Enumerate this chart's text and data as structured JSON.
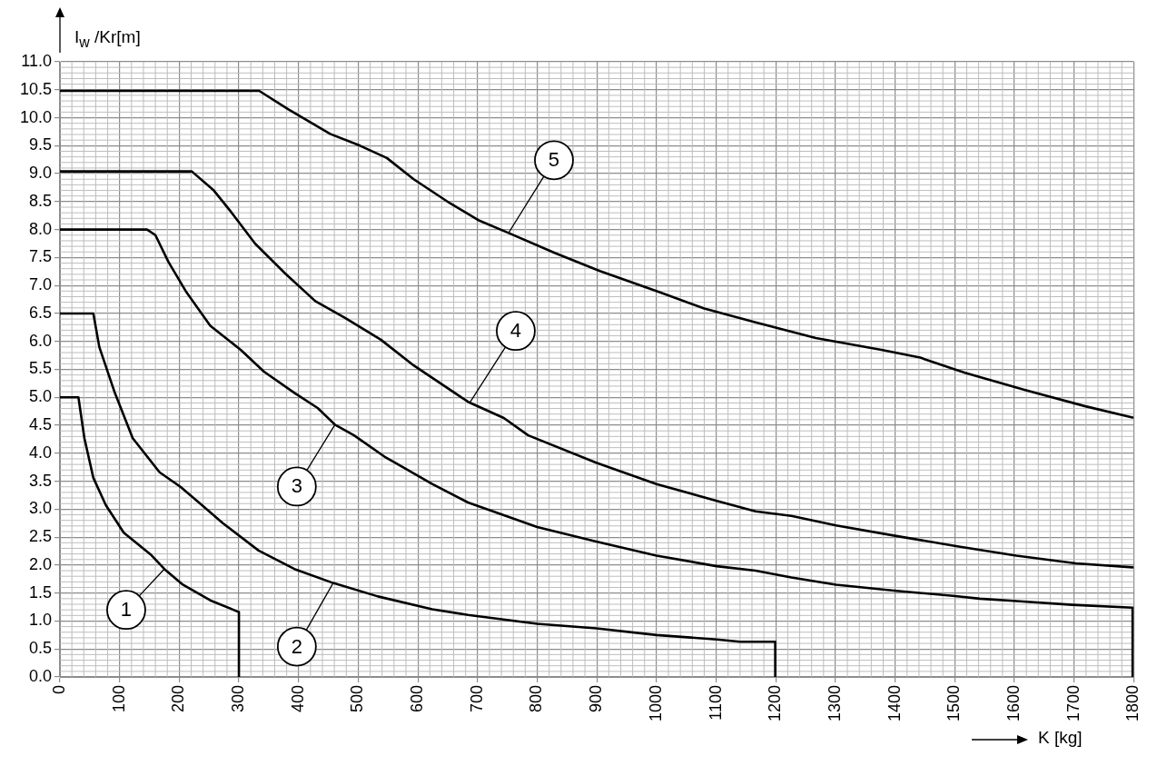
{
  "chart_data": {
    "type": "line",
    "ylabel": "I$_{w}$ /Kr[m]",
    "xlabel": "K [kg]",
    "xlim": [
      0,
      1800
    ],
    "xticks": [
      0,
      100,
      200,
      300,
      400,
      500,
      600,
      700,
      800,
      900,
      1000,
      1100,
      1200,
      1300,
      1400,
      1500,
      1600,
      1700,
      1800
    ],
    "ylim": [
      0,
      11
    ],
    "yticks": [
      {
        "value": 0,
        "label": "0.0"
      },
      0.5,
      {
        "value": 1,
        "label": "1.0"
      },
      1.5,
      {
        "value": 2,
        "label": "2.0"
      },
      2.5,
      {
        "value": 3,
        "label": "3.0"
      },
      3.5,
      {
        "value": 4,
        "label": "4.0"
      },
      4.5,
      {
        "value": 5,
        "label": "5.0"
      },
      5.5,
      {
        "value": 6,
        "label": "6.0"
      },
      6.5,
      {
        "value": 7,
        "label": "7.0"
      },
      7.5,
      {
        "value": 8,
        "label": "8.0"
      },
      8.5,
      {
        "value": 9,
        "label": "9.0"
      },
      9.5,
      {
        "value": 10,
        "label": "10.0"
      },
      10.5,
      {
        "value": 11,
        "label": "11.0"
      }
    ],
    "grid": true,
    "marker": "none",
    "line_style": "solid",
    "series": [
      {
        "color": "#000000",
        "x": [
          0,
          31,
          41,
          56,
          77,
          107,
          152,
          175,
          206,
          252,
          300,
          300
        ],
        "values": [
          5.0,
          5.0,
          4.27,
          3.56,
          3.07,
          2.58,
          2.19,
          1.93,
          1.65,
          1.37,
          1.16,
          0
        ]
      },
      {
        "color": "#000000",
        "x": [
          0,
          56,
          66,
          92,
          122,
          167,
          202,
          236,
          273,
          333,
          393,
          458,
          533,
          624,
          684,
          800,
          899,
          1000,
          1101,
          1140,
          1199,
          1199
        ],
        "values": [
          6.5,
          6.5,
          5.9,
          5.08,
          4.27,
          3.66,
          3.4,
          3.09,
          2.75,
          2.26,
          1.93,
          1.68,
          1.44,
          1.21,
          1.11,
          0.95,
          0.87,
          0.75,
          0.67,
          0.63,
          0.63,
          0
        ]
      },
      {
        "color": "#000000",
        "x": [
          0,
          146,
          160,
          182,
          212,
          252,
          303,
          342,
          393,
          432,
          461,
          493,
          544,
          624,
          684,
          800,
          899,
          1000,
          1101,
          1166,
          1226,
          1301,
          1402,
          1497,
          1542,
          1598,
          1697,
          1798,
          1798
        ],
        "values": [
          8.0,
          8.0,
          7.9,
          7.42,
          6.88,
          6.28,
          5.85,
          5.46,
          5.08,
          4.81,
          4.51,
          4.32,
          3.94,
          3.45,
          3.12,
          2.68,
          2.42,
          2.17,
          1.98,
          1.9,
          1.78,
          1.65,
          1.54,
          1.45,
          1.4,
          1.36,
          1.29,
          1.24,
          0
        ]
      },
      {
        "color": "#000000",
        "x": [
          0,
          221,
          257,
          288,
          327,
          378,
          428,
          478,
          538,
          593,
          684,
          744,
          785,
          899,
          1000,
          1101,
          1166,
          1226,
          1301,
          1402,
          1502,
          1603,
          1703,
          1798
        ],
        "values": [
          9.04,
          9.04,
          8.71,
          8.3,
          7.75,
          7.21,
          6.72,
          6.42,
          6.03,
          5.57,
          4.92,
          4.63,
          4.32,
          3.83,
          3.45,
          3.15,
          2.96,
          2.88,
          2.71,
          2.52,
          2.34,
          2.17,
          2.03,
          1.96
        ]
      },
      {
        "color": "#000000",
        "x": [
          0,
          334,
          383,
          453,
          503,
          548,
          593,
          654,
          703,
          752,
          830,
          905,
          1005,
          1080,
          1166,
          1267,
          1377,
          1442,
          1517,
          1618,
          1719,
          1798
        ],
        "values": [
          10.48,
          10.48,
          10.15,
          9.71,
          9.5,
          9.28,
          8.9,
          8.47,
          8.16,
          7.94,
          7.58,
          7.26,
          6.88,
          6.59,
          6.34,
          6.06,
          5.85,
          5.71,
          5.44,
          5.13,
          4.84,
          4.64
        ]
      }
    ],
    "annotations": [
      {
        "text": "1",
        "x": 175,
        "y": 1.93
      },
      {
        "text": "2",
        "x": 458,
        "y": 1.68
      },
      {
        "text": "3",
        "x": 461,
        "y": 4.51
      },
      {
        "text": "4",
        "x": 688,
        "y": 4.92
      },
      {
        "text": "5",
        "x": 752,
        "y": 7.94
      }
    ]
  }
}
